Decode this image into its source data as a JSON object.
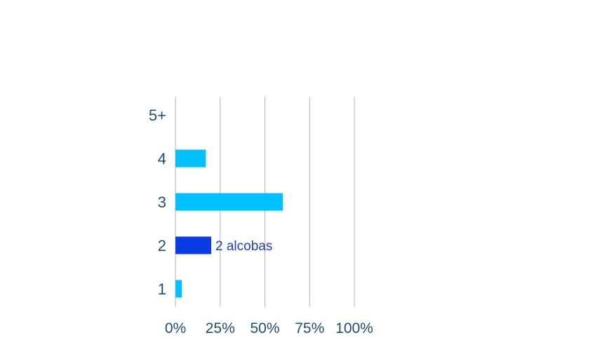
{
  "chart_data": {
    "type": "bar",
    "orientation": "horizontal",
    "categories": [
      "5+",
      "4",
      "3",
      "2",
      "1"
    ],
    "values": [
      0,
      17,
      60,
      20,
      3.5
    ],
    "value_unit": "%",
    "xlim": [
      0,
      100
    ],
    "xticks": [
      "0%",
      "25%",
      "50%",
      "75%",
      "100%"
    ],
    "grid": "vertical",
    "highlight": {
      "category": "2",
      "label": "2 alcobas"
    },
    "colors": {
      "bar": "#00c1ff",
      "highlight_bar": "#0a3ce6",
      "highlight_label": "#1a3fd6",
      "axis_text": "#1f4e79",
      "grid": "#b3b3b3"
    }
  }
}
